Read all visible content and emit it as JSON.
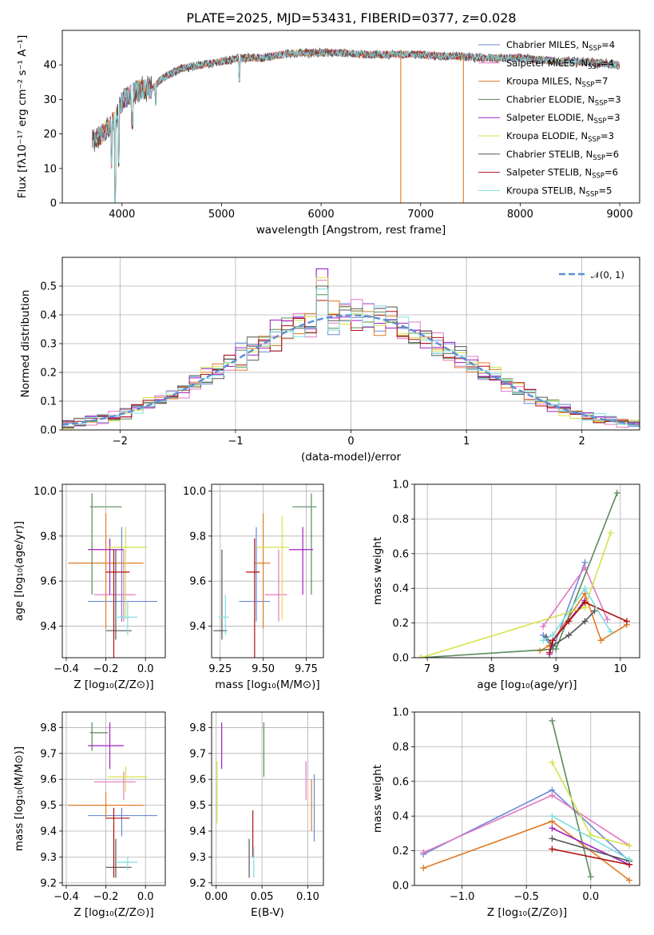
{
  "colors": [
    "#6b8ad6",
    "#e377c2",
    "#e07b26",
    "#5a8a5a",
    "#a020c0",
    "#d6e24a",
    "#555555",
    "#b01010",
    "#7fdde0"
  ],
  "chart_data": [
    {
      "id": "spectrum",
      "type": "line",
      "title": "PLATE=2025, MJD=53431, FIBERID=0377, z=0.028",
      "xlabel": "wavelength [Angstrom, rest frame]",
      "ylabel": "Flux [fλ10⁻¹⁷ erg cm⁻² s⁻¹ A⁻¹]",
      "xlim": [
        3400,
        9200
      ],
      "ylim": [
        0,
        50
      ],
      "xticks": [
        "4000",
        "5000",
        "6000",
        "7000",
        "8000",
        "9000"
      ],
      "yticks": [
        "0",
        "10",
        "20",
        "30",
        "40"
      ],
      "grid": false,
      "legend_position": "top-right",
      "continuum": {
        "x": [
          3700,
          3800,
          3900,
          4000,
          4100,
          4200,
          4300,
          4400,
          4600,
          4800,
          5000,
          5200,
          5400,
          5600,
          5800,
          6000,
          6200,
          6400,
          6600,
          6800,
          7000,
          7200,
          7400,
          7600,
          7800,
          8000,
          8200,
          8400,
          8600,
          8800,
          9000
        ],
        "y": [
          18,
          20,
          23,
          29,
          32,
          33,
          33,
          36,
          39,
          40,
          41,
          42,
          42,
          43,
          43.5,
          43.5,
          43.5,
          43,
          43,
          43,
          43,
          42.5,
          42.5,
          42,
          42,
          42,
          41.5,
          41,
          41,
          40.5,
          40
        ]
      },
      "dropouts": [
        {
          "series": "Kroupa MILES, N_SSP=7",
          "x": 6800
        },
        {
          "series": "Chabrier MILES, N_SSP=4",
          "x": 7430
        }
      ],
      "series": [
        {
          "name": "Chabrier MILES, N",
          "sub": "SSP",
          "suffix": "=4"
        },
        {
          "name": "Salpeter MILES, N",
          "sub": "SSP",
          "suffix": "=4"
        },
        {
          "name": "Kroupa MILES, N",
          "sub": "SSP",
          "suffix": "=7"
        },
        {
          "name": "Chabrier ELODIE, N",
          "sub": "SSP",
          "suffix": "=3"
        },
        {
          "name": "Salpeter ELODIE, N",
          "sub": "SSP",
          "suffix": "=3"
        },
        {
          "name": "Kroupa ELODIE, N",
          "sub": "SSP",
          "suffix": "=3"
        },
        {
          "name": "Chabrier STELIB, N",
          "sub": "SSP",
          "suffix": "=6"
        },
        {
          "name": "Salpeter STELIB, N",
          "sub": "SSP",
          "suffix": "=6"
        },
        {
          "name": "Kroupa STELIB, N",
          "sub": "SSP",
          "suffix": "=5"
        }
      ]
    },
    {
      "id": "residuals",
      "type": "bar",
      "xlabel": "(data-model)/error",
      "ylabel": "Normed distribution",
      "xlim": [
        -2.5,
        2.5
      ],
      "ylim": [
        0,
        0.6
      ],
      "xticks": [
        "−2",
        "−1",
        "0",
        "1",
        "2"
      ],
      "yticks": [
        "0.0",
        "0.1",
        "0.2",
        "0.3",
        "0.4",
        "0.5"
      ],
      "grid": true,
      "legend_position": "top-right",
      "legend_label": "𝒩(0, 1)",
      "bin_width": 0.1,
      "note": "histograms of 9 series; bins of width 0.1 from -2.5 to 2.5",
      "normal_reference": {
        "mean": 0,
        "sigma": 1
      }
    },
    {
      "id": "age_vs_Z",
      "type": "scatter",
      "xlabel": "Z [log₁₀(Z/Z⊙)]",
      "ylabel": "age  [log₁₀(age/yr)]",
      "xlim": [
        -0.42,
        0.1
      ],
      "ylim": [
        9.26,
        10.03
      ],
      "xticks": [
        "−0.4",
        "−0.2",
        "0.0"
      ],
      "yticks": [
        "9.4",
        "9.6",
        "9.8",
        "10.0"
      ],
      "grid": true,
      "points": [
        {
          "x": -0.12,
          "y": 9.51,
          "xerr": [
            0.17,
            0.18
          ],
          "yerr": [
            0.09,
            0.33
          ]
        },
        {
          "x": -0.11,
          "y": 9.54,
          "xerr": [
            0.15,
            0.06
          ],
          "yerr": [
            0.12,
            0.2
          ]
        },
        {
          "x": -0.2,
          "y": 9.68,
          "xerr": [
            0.19,
            0.19
          ],
          "yerr": [
            0.29,
            0.22
          ]
        },
        {
          "x": -0.27,
          "y": 9.93,
          "xerr": [
            0.01,
            0.15
          ],
          "yerr": [
            0.39,
            0.06
          ]
        },
        {
          "x": -0.18,
          "y": 9.74,
          "xerr": [
            0.11,
            0.07
          ],
          "yerr": [
            0.2,
            0.05
          ]
        },
        {
          "x": -0.1,
          "y": 9.75,
          "xerr": [
            0.09,
            0.11
          ],
          "yerr": [
            0.32,
            0.09
          ]
        },
        {
          "x": -0.15,
          "y": 9.38,
          "xerr": [
            0.05,
            0.08
          ],
          "yerr": [
            0.04,
            0.36
          ]
        },
        {
          "x": -0.16,
          "y": 9.64,
          "xerr": [
            0.04,
            0.08
          ],
          "yerr": [
            0.47,
            0.1
          ]
        },
        {
          "x": -0.09,
          "y": 9.44,
          "xerr": [
            0.06,
            0.05
          ],
          "yerr": [
            0.08,
            0.07
          ]
        }
      ]
    },
    {
      "id": "age_vs_mass",
      "type": "scatter",
      "xlabel": "mass [log₁₀(M/M⊙)]",
      "ylabel": "",
      "xlim": [
        9.2,
        9.85
      ],
      "ylim": [
        9.26,
        10.03
      ],
      "xticks": [
        "9.25",
        "9.50",
        "9.75"
      ],
      "yticks": [
        "9.4",
        "9.6",
        "9.8",
        "10.0"
      ],
      "grid": true,
      "points": [
        {
          "x": 9.46,
          "y": 9.51,
          "xerr": [
            0.1,
            0.08
          ],
          "yerr": [
            0.09,
            0.33
          ]
        },
        {
          "x": 9.59,
          "y": 9.54,
          "xerr": [
            0.08,
            0.05
          ],
          "yerr": [
            0.12,
            0.2
          ]
        },
        {
          "x": 9.5,
          "y": 9.68,
          "xerr": [
            0.05,
            0.04
          ],
          "yerr": [
            0.29,
            0.22
          ]
        },
        {
          "x": 9.78,
          "y": 9.93,
          "xerr": [
            0.11,
            0.03
          ],
          "yerr": [
            0.39,
            0.06
          ]
        },
        {
          "x": 9.73,
          "y": 9.74,
          "xerr": [
            0.08,
            0.06
          ],
          "yerr": [
            0.2,
            0.1
          ]
        },
        {
          "x": 9.61,
          "y": 9.75,
          "xerr": [
            0.15,
            0.04
          ],
          "yerr": [
            0.32,
            0.14
          ]
        },
        {
          "x": 9.26,
          "y": 9.38,
          "xerr": [
            0.05,
            0.03
          ],
          "yerr": [
            0.04,
            0.36
          ]
        },
        {
          "x": 9.45,
          "y": 9.64,
          "xerr": [
            0.05,
            0.03
          ],
          "yerr": [
            0.47,
            0.15
          ]
        },
        {
          "x": 9.28,
          "y": 9.44,
          "xerr": [
            0.04,
            0.02
          ],
          "yerr": [
            0.08,
            0.1
          ]
        }
      ]
    },
    {
      "id": "weight_vs_age",
      "type": "line",
      "xlabel": "age  [log₁₀(age/yr)]",
      "ylabel": "mass weight",
      "xlim": [
        6.8,
        10.3
      ],
      "ylim": [
        0,
        1.0
      ],
      "xticks": [
        "7",
        "8",
        "9",
        "10"
      ],
      "yticks": [
        "0.0",
        "0.2",
        "0.4",
        "0.6",
        "0.8",
        "1.0"
      ],
      "grid": true,
      "series": [
        {
          "x": [
            8.8,
            8.95,
            9.45
          ],
          "y": [
            0.13,
            0.05,
            0.55
          ]
        },
        {
          "x": [
            8.8,
            9.45,
            9.8
          ],
          "y": [
            0.18,
            0.52,
            0.22
          ]
        },
        {
          "x": [
            8.75,
            8.9,
            9.45,
            9.7,
            10.1
          ],
          "y": [
            0.04,
            0.07,
            0.37,
            0.1,
            0.19
          ]
        },
        {
          "x": [
            6.9,
            9.0,
            9.95
          ],
          "y": [
            0.0,
            0.05,
            0.95
          ]
        },
        {
          "x": [
            8.9,
            8.95,
            9.45
          ],
          "y": [
            0.02,
            0.1,
            0.33
          ]
        },
        {
          "x": [
            6.9,
            9.45,
            9.85
          ],
          "y": [
            0.0,
            0.29,
            0.72
          ]
        },
        {
          "x": [
            8.85,
            8.95,
            9.2,
            9.45,
            9.6
          ],
          "y": [
            0.12,
            0.07,
            0.13,
            0.21,
            0.27
          ]
        },
        {
          "x": [
            8.9,
            8.95,
            9.2,
            9.45,
            10.1
          ],
          "y": [
            0.03,
            0.1,
            0.21,
            0.32,
            0.21
          ]
        },
        {
          "x": [
            8.8,
            8.95,
            9.45,
            9.85
          ],
          "y": [
            0.1,
            0.13,
            0.4,
            0.15
          ]
        }
      ]
    },
    {
      "id": "mass_vs_Z",
      "type": "scatter",
      "xlabel": "Z [log₁₀(Z/Z⊙)]",
      "ylabel": "mass [log₁₀(M/M⊙)]",
      "xlim": [
        -0.42,
        0.1
      ],
      "ylim": [
        9.19,
        9.86
      ],
      "xticks": [
        "−0.4",
        "−0.2",
        "0.0"
      ],
      "yticks": [
        "9.2",
        "9.3",
        "9.4",
        "9.5",
        "9.6",
        "9.7",
        "9.8"
      ],
      "grid": true,
      "points": [
        {
          "x": -0.12,
          "y": 9.46,
          "xerr": [
            0.17,
            0.18
          ],
          "yerr": [
            0.08,
            0.03
          ]
        },
        {
          "x": -0.11,
          "y": 9.59,
          "xerr": [
            0.15,
            0.06
          ],
          "yerr": [
            0.07,
            0.04
          ]
        },
        {
          "x": -0.2,
          "y": 9.5,
          "xerr": [
            0.19,
            0.19
          ],
          "yerr": [
            0.05,
            0.05
          ]
        },
        {
          "x": -0.27,
          "y": 9.78,
          "xerr": [
            0.01,
            0.08
          ],
          "yerr": [
            0.07,
            0.04
          ]
        },
        {
          "x": -0.18,
          "y": 9.73,
          "xerr": [
            0.11,
            0.07
          ],
          "yerr": [
            0.09,
            0.09
          ]
        },
        {
          "x": -0.1,
          "y": 9.61,
          "xerr": [
            0.09,
            0.11
          ],
          "yerr": [
            0.06,
            0.04
          ]
        },
        {
          "x": -0.15,
          "y": 9.26,
          "xerr": [
            0.05,
            0.08
          ],
          "yerr": [
            0.04,
            0.11
          ]
        },
        {
          "x": -0.16,
          "y": 9.45,
          "xerr": [
            0.04,
            0.08
          ],
          "yerr": [
            0.23,
            0.04
          ]
        },
        {
          "x": -0.09,
          "y": 9.28,
          "xerr": [
            0.06,
            0.05
          ],
          "yerr": [
            0.03,
            0.02
          ]
        }
      ]
    },
    {
      "id": "mass_vs_ebv",
      "type": "scatter",
      "xlabel": "E(B-V)",
      "ylabel": "",
      "xlim": [
        -0.005,
        0.117
      ],
      "ylim": [
        9.19,
        9.86
      ],
      "xticks": [
        "0.00",
        "0.05",
        "0.10"
      ],
      "yticks": [
        "9.2",
        "9.3",
        "9.4",
        "9.5",
        "9.6",
        "9.7",
        "9.8"
      ],
      "grid": true,
      "points": [
        {
          "x": 0.107,
          "y": 9.46,
          "yerr": [
            0.1,
            0.16
          ]
        },
        {
          "x": 0.098,
          "y": 9.59,
          "yerr": [
            0.07,
            0.08
          ]
        },
        {
          "x": 0.104,
          "y": 9.5,
          "yerr": [
            0.1,
            0.1
          ]
        },
        {
          "x": 0.052,
          "y": 9.78,
          "yerr": [
            0.17,
            0.04
          ]
        },
        {
          "x": 0.006,
          "y": 9.73,
          "yerr": [
            0.09,
            0.09
          ]
        },
        {
          "x": 0.001,
          "y": 9.61,
          "yerr": [
            0.18,
            0.06
          ]
        },
        {
          "x": 0.036,
          "y": 9.26,
          "yerr": [
            0.04,
            0.11
          ]
        },
        {
          "x": 0.04,
          "y": 9.45,
          "yerr": [
            0.15,
            0.03
          ]
        },
        {
          "x": 0.041,
          "y": 9.28,
          "yerr": [
            0.06,
            0.06
          ]
        }
      ]
    },
    {
      "id": "weight_vs_Z",
      "type": "line",
      "xlabel": "Z [log₁₀(Z/Z⊙)]",
      "ylabel": "mass weight",
      "xlim": [
        -1.37,
        0.38
      ],
      "ylim": [
        0,
        1.0
      ],
      "xticks": [
        "−1.0",
        "−0.5",
        "0.0"
      ],
      "yticks": [
        "0.0",
        "0.2",
        "0.4",
        "0.6",
        "0.8",
        "1.0"
      ],
      "grid": true,
      "series": [
        {
          "x": [
            -1.3,
            -0.3,
            0.3
          ],
          "y": [
            0.18,
            0.55,
            0.14
          ]
        },
        {
          "x": [
            -1.3,
            -0.3,
            0.3
          ],
          "y": [
            0.19,
            0.52,
            0.23
          ]
        },
        {
          "x": [
            -1.3,
            -0.3,
            0.3
          ],
          "y": [
            0.1,
            0.37,
            0.03
          ]
        },
        {
          "x": [
            -0.3,
            0.0
          ],
          "y": [
            0.95,
            0.05
          ]
        },
        {
          "x": [
            -0.3,
            0.3
          ],
          "y": [
            0.33,
            0.12
          ]
        },
        {
          "x": [
            -0.3,
            0.0,
            0.3
          ],
          "y": [
            0.71,
            0.29,
            0.23
          ]
        },
        {
          "x": [
            -0.3,
            0.3
          ],
          "y": [
            0.27,
            0.14
          ]
        },
        {
          "x": [
            -0.3,
            0.3
          ],
          "y": [
            0.21,
            0.12
          ]
        },
        {
          "x": [
            -0.3,
            0.3
          ],
          "y": [
            0.4,
            0.15
          ]
        }
      ]
    }
  ]
}
